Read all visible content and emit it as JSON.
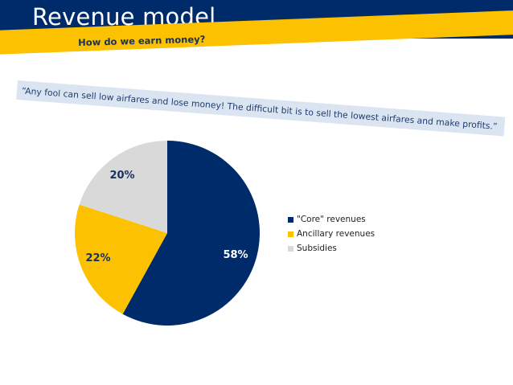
{
  "header": {
    "title": "Revenue model",
    "subtitle": "How do we earn money?",
    "quote": "“Any fool can sell low airfares and lose money! The difficult bit is to sell the lowest airfares and make profits.”"
  },
  "colors": {
    "header_bg": "#002b6b",
    "band_yellow": "#fcc100",
    "quote_band": "#dbe5f1"
  },
  "chart_data": {
    "type": "pie",
    "categories": [
      "\"Core\" revenues",
      "Ancillary revenues",
      "Subsidies"
    ],
    "values": [
      58,
      22,
      20
    ],
    "labels": [
      "58%",
      "22%",
      "20%"
    ],
    "colors": [
      "#002b6b",
      "#fcc100",
      "#d9d9d9"
    ],
    "label_colors": [
      "#ffffff",
      "#16305f",
      "#16305f"
    ],
    "start_angle_deg": 0,
    "direction": "clockwise",
    "legend_position": "right"
  }
}
